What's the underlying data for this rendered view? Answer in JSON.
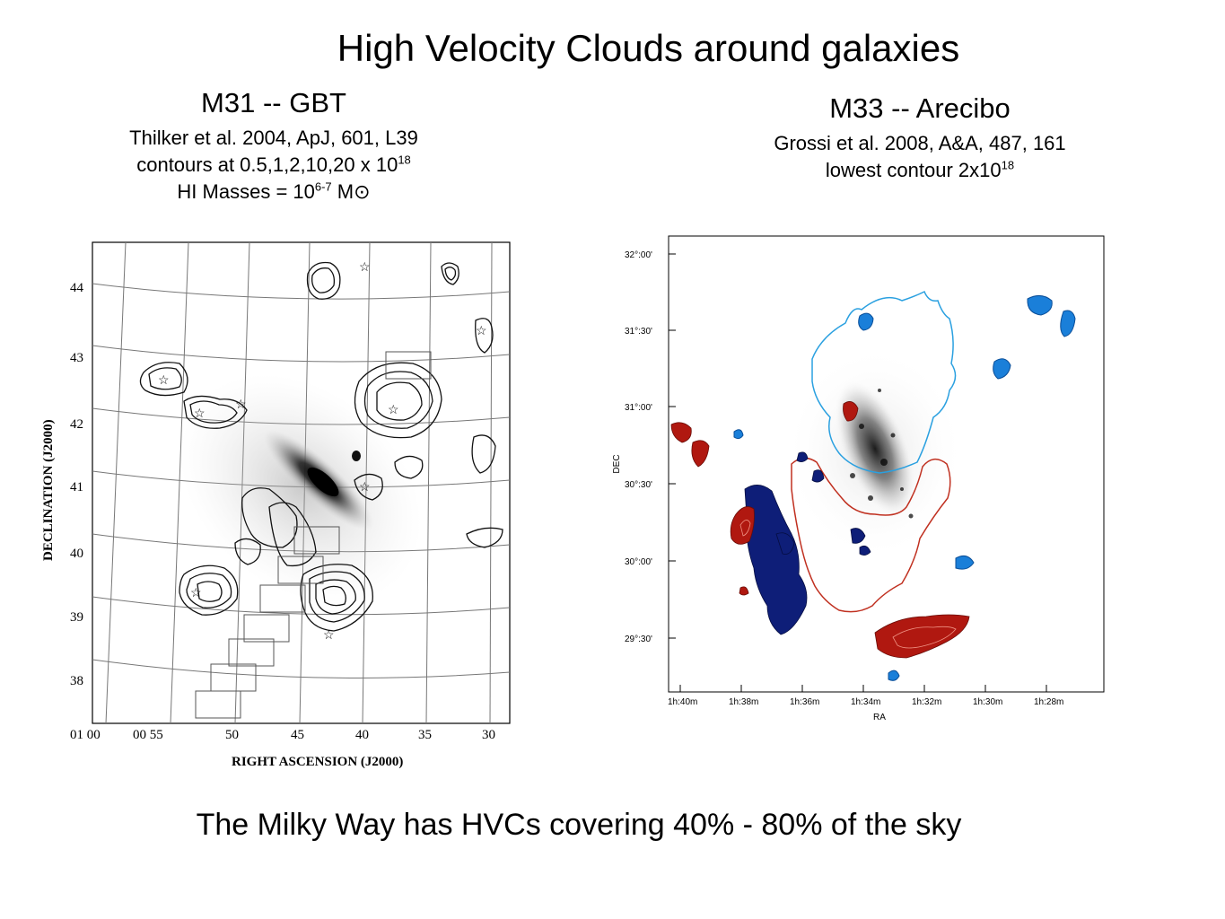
{
  "title": "High Velocity Clouds around galaxies",
  "left": {
    "heading": "M31 -- GBT",
    "citation": "Thilker et al. 2004, ApJ, 601, L39",
    "contours_prefix": "contours at 0.5,1,2,10,20  x 10",
    "contours_exp": "18",
    "masses_prefix": "HI Masses = 10",
    "masses_exp": "6-7",
    "masses_suffix": " M",
    "sun_symbol": "⊙",
    "figure": {
      "xlabel": "RIGHT ASCENSION (J2000)",
      "ylabel": "DECLINATION (J2000)",
      "xticks": [
        "01 00",
        "00 55",
        "50",
        "45",
        "40",
        "35",
        "30"
      ],
      "yticks": [
        "44",
        "43",
        "42",
        "41",
        "40",
        "39",
        "38"
      ]
    }
  },
  "right": {
    "heading": "M33 -- Arecibo",
    "citation": "Grossi et al. 2008, A&A, 487, 161",
    "contour_prefix": "lowest contour 2x10",
    "contour_exp": "18",
    "figure": {
      "xlabel": "RA",
      "ylabel": "DEC",
      "xticks": [
        "1h:40m",
        "1h:38m",
        "1h:36m",
        "1h:34m",
        "1h:32m",
        "1h:30m",
        "1h:28m"
      ],
      "yticks": [
        "32°:00'",
        "31°:30'",
        "31°:00'",
        "30°:30'",
        "30°:00'",
        "29°:30'"
      ],
      "colors": {
        "blue_clouds": "#1a7fd9",
        "navy_clouds": "#0e1e78",
        "red_clouds": "#b01810"
      }
    }
  },
  "footer": "The Milky Way has HVCs covering 40% - 80% of the sky"
}
